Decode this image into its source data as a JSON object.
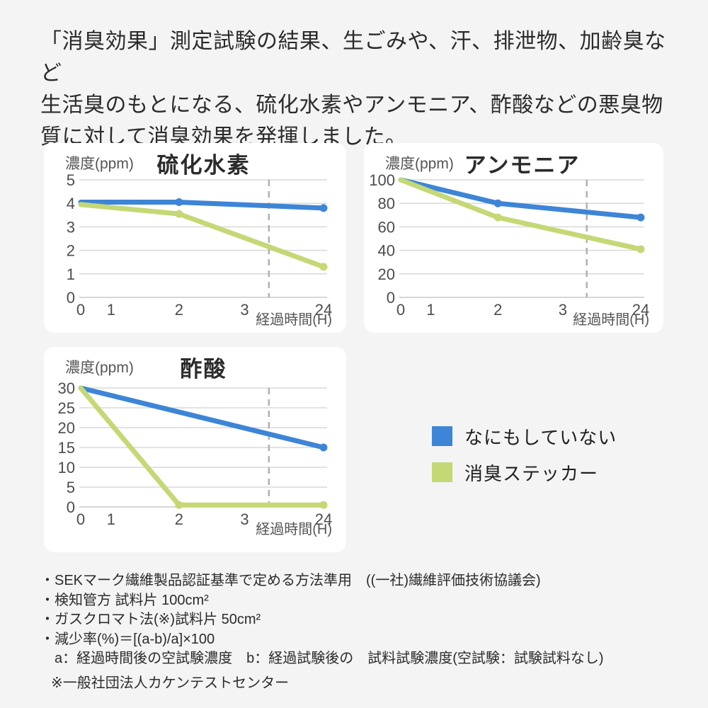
{
  "page": {
    "background": "#f4f4f4"
  },
  "header": {
    "lines": [
      "「消臭効果」測定試験の結果、生ごみや、汗、排泄物、加齢臭など",
      "生活臭のもとになる、硫化水素やアンモニア、酢酸などの悪臭物",
      "質に対して消臭効果を発揮しました。"
    ]
  },
  "colors": {
    "blue": "#3d85d6",
    "green": "#c4d876",
    "grid": "#d9d9d9",
    "baseline": "#c9c9c9",
    "dashed": "#b0b0b0",
    "axis_text": "#4d4d4d",
    "label_text": "#555555",
    "title_text": "#2b2b2b"
  },
  "legend": {
    "items": [
      {
        "label": "なにもしていない",
        "color": "blue"
      },
      {
        "label": "消臭ステッカー",
        "color": "green"
      }
    ]
  },
  "chart_data": [
    {
      "type": "line",
      "title": "硫化水素",
      "ylabel": "濃度(ppm)",
      "xlabel": "経過時間(H)",
      "ylim": [
        0,
        5
      ],
      "y_ticks": [
        0,
        1,
        2,
        3,
        4,
        5
      ],
      "x_ticks": [
        0,
        1,
        2,
        3,
        24
      ],
      "grid": true,
      "dashed_vline": true,
      "legend_position": "outside-right",
      "series": [
        {
          "name": "なにもしていない",
          "color": "blue",
          "x": [
            0,
            2,
            24
          ],
          "y": [
            4.05,
            4.05,
            3.8
          ],
          "dots": [
            2,
            24
          ]
        },
        {
          "name": "消臭ステッカー",
          "color": "green",
          "x": [
            0,
            2,
            24
          ],
          "y": [
            3.95,
            3.55,
            1.3
          ],
          "dots": [
            2,
            24
          ]
        }
      ]
    },
    {
      "type": "line",
      "title": "アンモニア",
      "ylabel": "濃度(ppm)",
      "xlabel": "経過時間(H)",
      "ylim": [
        0,
        100
      ],
      "y_ticks": [
        0,
        20,
        40,
        60,
        80,
        100
      ],
      "x_ticks": [
        0,
        1,
        2,
        3,
        24
      ],
      "grid": true,
      "dashed_vline": true,
      "legend_position": "outside-right",
      "series": [
        {
          "name": "なにもしていない",
          "color": "blue",
          "x": [
            0,
            2,
            24
          ],
          "y": [
            100,
            80,
            68
          ],
          "dots": [
            2,
            24
          ]
        },
        {
          "name": "消臭ステッカー",
          "color": "green",
          "x": [
            0,
            2,
            24
          ],
          "y": [
            100,
            68,
            41
          ],
          "dots": [
            2,
            24
          ]
        }
      ]
    },
    {
      "type": "line",
      "title": "酢酸",
      "ylabel": "濃度(ppm)",
      "xlabel": "経過時間(H)",
      "ylim": [
        0,
        30
      ],
      "y_ticks": [
        0,
        5,
        10,
        15,
        20,
        25,
        30
      ],
      "x_ticks": [
        0,
        1,
        2,
        3,
        24
      ],
      "grid": true,
      "dashed_vline": true,
      "legend_position": "outside-right",
      "series": [
        {
          "name": "なにもしていない",
          "color": "blue",
          "x": [
            0,
            24
          ],
          "y": [
            30,
            15
          ],
          "dots": [
            24
          ]
        },
        {
          "name": "消臭ステッカー",
          "color": "green",
          "x": [
            0,
            2,
            24
          ],
          "y": [
            30,
            0.5,
            0.5
          ],
          "dots": [
            2,
            24
          ]
        }
      ]
    }
  ],
  "footnotes": {
    "lines": [
      "・SEKマーク繊維製品認証基準で定める方法準用　((一社)繊維評価技術協議会)",
      "・検知管方 試料片 100cm²",
      "・ガスクロマト法(※)試料片 50cm²",
      "・減少率(%)＝[(a-b)/a]×100",
      "　a：経過時間後の空試験濃度　b：経過試験後の　試料試験濃度(空試験：試験試料なし)"
    ],
    "note": "※一般社団法人カケンテストセンター"
  }
}
